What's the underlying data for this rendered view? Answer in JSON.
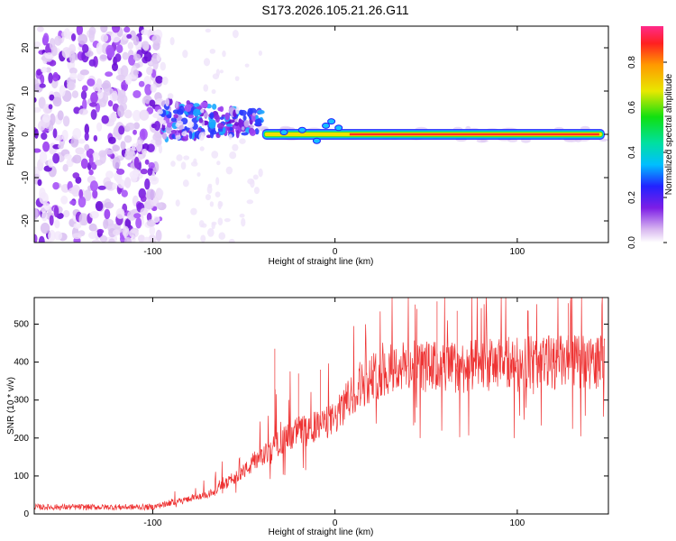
{
  "title": "S173.2026.105.21.26.G11",
  "chart_data": [
    {
      "type": "heatmap",
      "xlabel": "Height of straight line (km)",
      "ylabel": "Frequency (Hz)",
      "xlim": [
        -165,
        150
      ],
      "ylim": [
        -25,
        25
      ],
      "xticks": [
        -100,
        0,
        100
      ],
      "xtick_labels": [
        "-100",
        "0",
        "100"
      ],
      "yticks": [
        20,
        10,
        0,
        -10,
        -20
      ],
      "ytick_labels": [
        "20",
        "10",
        "0",
        "-10",
        "-20"
      ],
      "colorbar": {
        "label": "Normalized spectral amplitude",
        "ticks": [
          0.0,
          0.2,
          0.4,
          0.6,
          0.8
        ],
        "tick_labels": [
          "0.0",
          "0.2",
          "0.4",
          "0.6",
          "0.8"
        ],
        "range": [
          0,
          0.96
        ]
      },
      "features": [
        {
          "name": "noise",
          "x_range": [
            -165,
            -95
          ],
          "y_range": [
            -25,
            25
          ],
          "level": 0.05
        },
        {
          "name": "transition",
          "x_range": [
            -95,
            -40
          ],
          "y_center": 3,
          "y_spread": 5,
          "level": 0.2
        },
        {
          "name": "tone",
          "x_range": [
            -40,
            148
          ],
          "y": 0,
          "level": 0.9
        }
      ]
    },
    {
      "type": "line",
      "xlabel": "Height of straight line (km)",
      "ylabel": "SNR (10 * v/v)",
      "xlim": [
        -165,
        150
      ],
      "ylim": [
        0,
        570
      ],
      "xticks": [
        -100,
        0,
        100
      ],
      "xtick_labels": [
        "-100",
        "0",
        "100"
      ],
      "yticks": [
        0,
        100,
        200,
        300,
        400,
        500
      ],
      "ytick_labels": [
        "0",
        "100",
        "200",
        "300",
        "400",
        "500"
      ],
      "color": "#ee3333",
      "trend": {
        "x": [
          -165,
          -100,
          -90,
          -70,
          -60,
          -45,
          -30,
          -20,
          -10,
          0,
          10,
          20,
          30,
          40,
          60,
          80,
          100,
          120,
          148
        ],
        "y": [
          18,
          18,
          30,
          50,
          80,
          130,
          190,
          220,
          230,
          250,
          320,
          360,
          380,
          390,
          385,
          390,
          400,
          400,
          400
        ]
      },
      "spikes": [
        [
          -33,
          435
        ],
        [
          -20,
          370
        ],
        [
          -8,
          380
        ],
        [
          45,
          540
        ],
        [
          56,
          560
        ],
        [
          67,
          535
        ],
        [
          128,
          555
        ]
      ]
    }
  ]
}
